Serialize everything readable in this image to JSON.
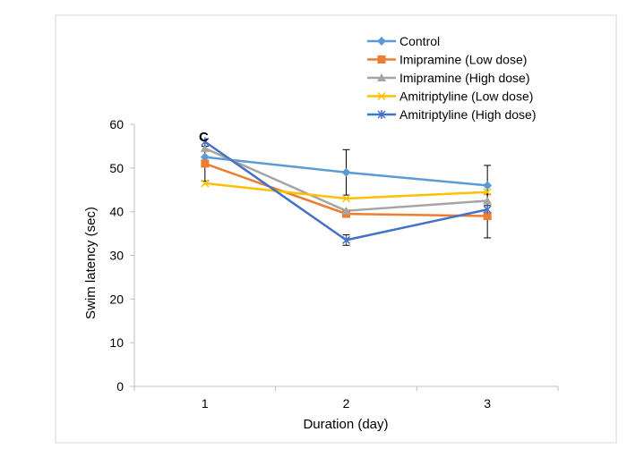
{
  "chart_data": {
    "type": "line",
    "panel_label": "C",
    "title": "",
    "xlabel": "Duration (day)",
    "ylabel": "Swim latency (sec)",
    "x": [
      1,
      2,
      3
    ],
    "x_tick_labels": [
      "1",
      "2",
      "3"
    ],
    "y_ticks": [
      0,
      10,
      20,
      30,
      40,
      50,
      60
    ],
    "ylim": [
      0,
      60
    ],
    "grid": false,
    "legend_position": "top-right",
    "series": [
      {
        "name": "Control",
        "values": [
          52.5,
          49,
          46
        ],
        "color": "#5b9bd5",
        "marker": "diamond",
        "error": [
          null,
          5.2,
          4.6
        ]
      },
      {
        "name": "Imipramine (Low dose)",
        "values": [
          51,
          39.5,
          39
        ],
        "color": "#ed7d31",
        "marker": "square",
        "error": [
          4,
          null,
          5
        ]
      },
      {
        "name": "Imipramine (High dose)",
        "values": [
          54.5,
          40.2,
          42.5
        ],
        "color": "#a5a5a5",
        "marker": "triangle",
        "error": [
          null,
          null,
          null
        ]
      },
      {
        "name": "Amitriptyline (Low dose)",
        "values": [
          46.5,
          43,
          44.5
        ],
        "color": "#ffc000",
        "marker": "x",
        "error": [
          null,
          null,
          null
        ]
      },
      {
        "name": "Amitriptyline (High dose)",
        "values": [
          56,
          33.5,
          40.5
        ],
        "color": "#4472c4",
        "marker": "star",
        "error": [
          null,
          1.2,
          null
        ]
      }
    ]
  }
}
